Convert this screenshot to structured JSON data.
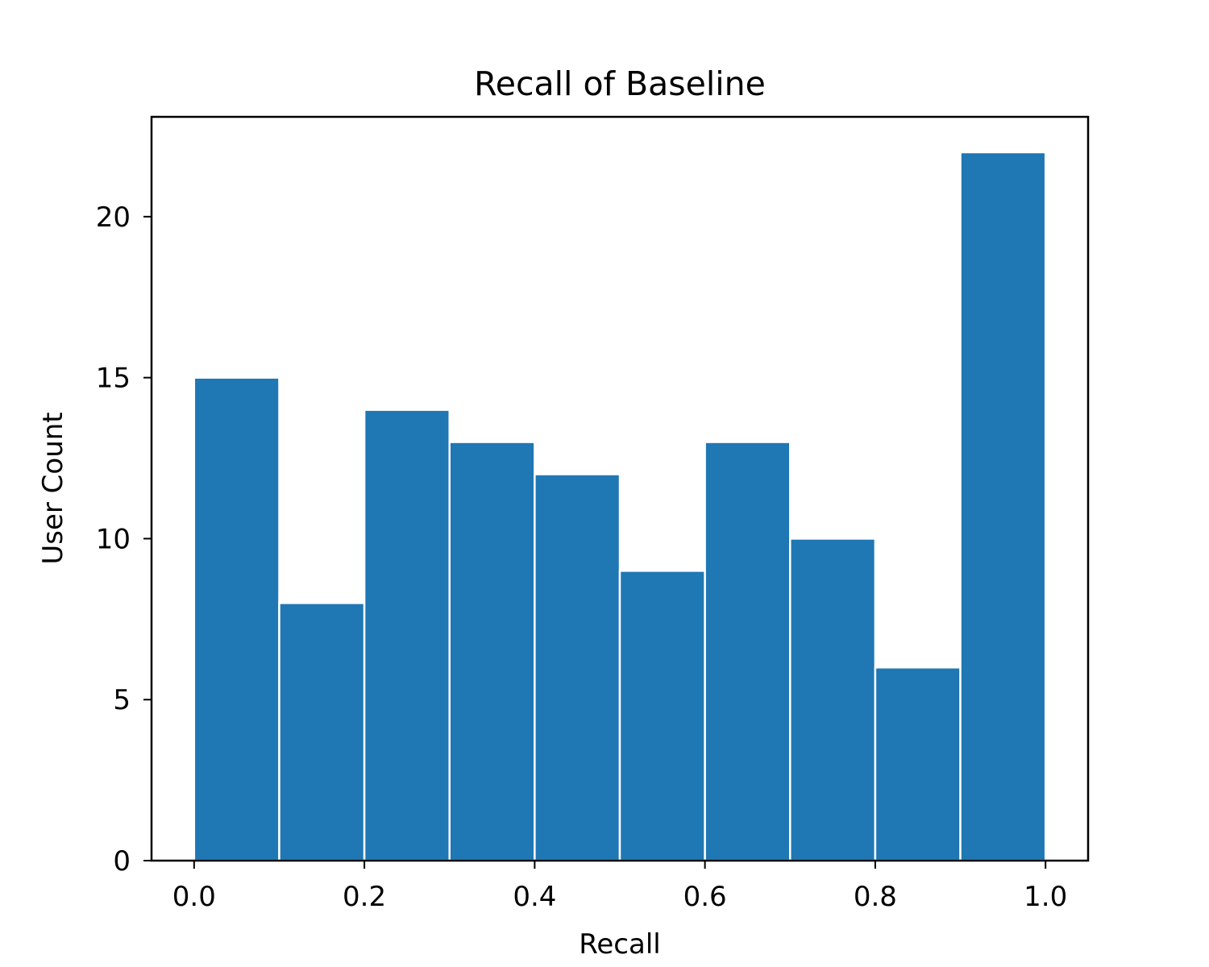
{
  "chart_data": {
    "type": "bar",
    "title": "Recall of Baseline",
    "xlabel": "Recall",
    "ylabel": "User Count",
    "bins": [
      {
        "start": 0.0,
        "end": 0.1,
        "value": 15
      },
      {
        "start": 0.1,
        "end": 0.2,
        "value": 8
      },
      {
        "start": 0.2,
        "end": 0.3,
        "value": 14
      },
      {
        "start": 0.3,
        "end": 0.4,
        "value": 13
      },
      {
        "start": 0.4,
        "end": 0.5,
        "value": 12
      },
      {
        "start": 0.5,
        "end": 0.6,
        "value": 9
      },
      {
        "start": 0.6,
        "end": 0.7,
        "value": 13
      },
      {
        "start": 0.7,
        "end": 0.8,
        "value": 10
      },
      {
        "start": 0.8,
        "end": 0.9,
        "value": 6
      },
      {
        "start": 0.9,
        "end": 1.0,
        "value": 22
      }
    ],
    "xlim": [
      -0.05,
      1.05
    ],
    "ylim": [
      0,
      23.1
    ],
    "xticks": [
      0.0,
      0.2,
      0.4,
      0.6,
      0.8,
      1.0
    ],
    "xtick_labels": [
      "0.0",
      "0.2",
      "0.4",
      "0.6",
      "0.8",
      "1.0"
    ],
    "yticks": [
      0,
      5,
      10,
      15,
      20
    ],
    "ytick_labels": [
      "0",
      "5",
      "10",
      "15",
      "20"
    ],
    "grid": false,
    "bar_color": "#1f77b4",
    "bar_edge_color": "#ffffff"
  }
}
